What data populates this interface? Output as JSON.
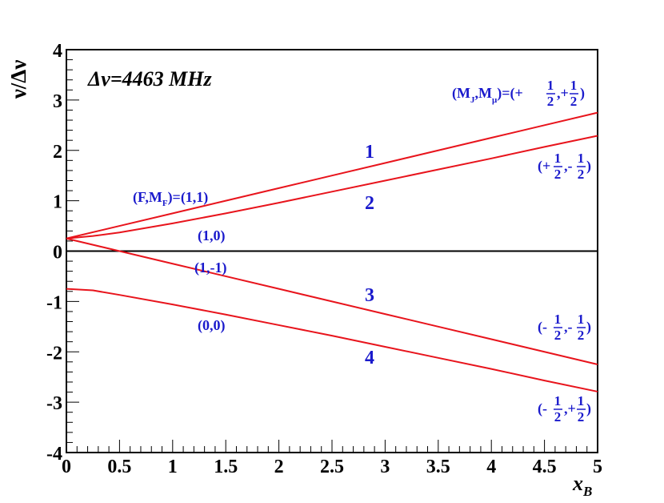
{
  "chart_data": {
    "type": "line",
    "title": "",
    "xlabel": "x",
    "xlabel_sub": "B",
    "ylabel": "ν/Δν",
    "xlim": [
      0,
      5
    ],
    "ylim": [
      -4,
      4
    ],
    "xticks": [
      "0",
      "0.5",
      "1",
      "1.5",
      "2",
      "2.5",
      "3",
      "3.5",
      "4",
      "4.5",
      "5"
    ],
    "yticks": [
      "4",
      "3",
      "2",
      "1",
      "0",
      "-1",
      "-2",
      "-3",
      "-4"
    ],
    "grid": false,
    "legend": "none",
    "colors": {
      "line": "#e8141c",
      "annotation": "#1a1acc",
      "axis": "#000000"
    },
    "hyperfine_text": "Δν=4463 MHz",
    "series": [
      {
        "x": [
          0,
          0.5,
          1,
          1.5,
          2,
          2.5,
          3,
          3.5,
          4,
          4.5,
          5
        ],
        "y": [
          0.25,
          0.5,
          0.75,
          1.0,
          1.25,
          1.5,
          1.75,
          2.0,
          2.25,
          2.5,
          2.75
        ]
      },
      {
        "x": [
          0,
          0.25,
          0.5,
          1,
          1.5,
          2,
          2.5,
          3,
          3.5,
          4,
          4.5,
          5
        ],
        "y": [
          0.25,
          0.3,
          0.37,
          0.55,
          0.75,
          0.96,
          1.18,
          1.4,
          1.62,
          1.84,
          2.07,
          2.29
        ]
      },
      {
        "x": [
          0,
          0.5,
          1,
          1.5,
          2,
          2.5,
          3,
          3.5,
          4,
          4.5,
          5
        ],
        "y": [
          0.25,
          0.0,
          -0.25,
          -0.5,
          -0.75,
          -1.0,
          -1.25,
          -1.5,
          -1.75,
          -2.0,
          -2.25
        ]
      },
      {
        "x": [
          0,
          0.25,
          0.5,
          1,
          1.5,
          2,
          2.5,
          3,
          3.5,
          4,
          4.5,
          5
        ],
        "y": [
          -0.75,
          -0.78,
          -0.87,
          -1.06,
          -1.26,
          -1.47,
          -1.68,
          -1.9,
          -2.12,
          -2.34,
          -2.57,
          -2.79
        ]
      }
    ],
    "curve_labels": [
      "1",
      "2",
      "3",
      "4"
    ],
    "state_labels": {
      "f_mf_label": "(F,M",
      "f_mf_sub": "F",
      "f_mf_value": ")=(1,1)",
      "s10": "(1,0)",
      "s1m1": "(1,-1)",
      "s00": "(0,0)"
    },
    "mj_mmu_label": {
      "prefix": "(M",
      "sub_j": "J",
      "mid": ",M",
      "sub_mu": "μ",
      "value": ")=(+",
      "frac_num": "1",
      "frac_den": "2",
      "sep": ",+",
      "end": ")"
    },
    "right_labels": [
      {
        "open": "(+",
        "sep": ",-",
        "close": ")"
      },
      {
        "open": "(-",
        "sep": ",-",
        "close": ")"
      },
      {
        "open": "(-",
        "sep": ",+",
        "close": ")"
      }
    ]
  }
}
